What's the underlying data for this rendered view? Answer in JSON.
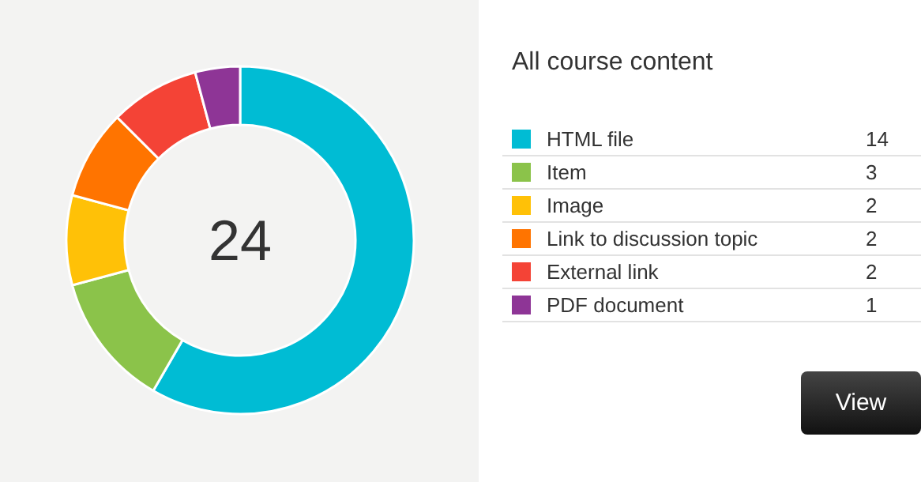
{
  "chart_data": {
    "type": "donut",
    "title": "All course content",
    "categories": [
      "HTML file",
      "Item",
      "Image",
      "Link to discussion topic",
      "External link",
      "PDF document"
    ],
    "values": [
      14,
      3,
      2,
      2,
      2,
      1
    ],
    "colors": [
      "#00bcd4",
      "#8bc34a",
      "#ffc107",
      "#ff7400",
      "#f44336",
      "#8e3596"
    ],
    "legend": "right",
    "data_labels": true,
    "annotations": [
      "24",
      "View"
    ]
  }
}
